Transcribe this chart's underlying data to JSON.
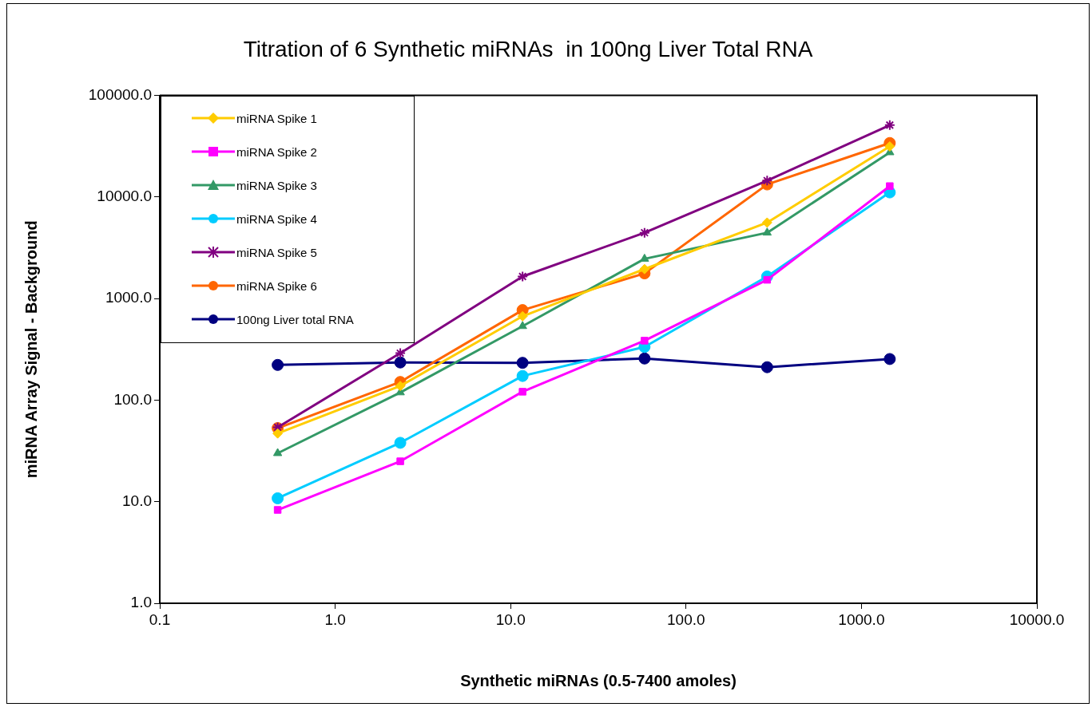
{
  "chart_data": {
    "type": "line",
    "title": "Titration of 6 Synthetic miRNAs  in 100ng Liver Total RNA",
    "xlabel": "Synthetic miRNAs (0.5-7400 amoles)",
    "ylabel": "miRNA Array Signal - Background",
    "x": [
      0.47,
      2.35,
      11.7,
      58,
      290,
      1450
    ],
    "series": [
      {
        "name": "miRNA Spike 1",
        "color": "#ffcc00",
        "marker": "diamond",
        "values": [
          47,
          138,
          670,
          1950,
          5600,
          31500
        ]
      },
      {
        "name": "miRNA Spike 2",
        "color": "#ff00ff",
        "marker": "square",
        "values": [
          8.3,
          25,
          121,
          385,
          1530,
          12800
        ]
      },
      {
        "name": "miRNA Spike 3",
        "color": "#339966",
        "marker": "triangle",
        "values": [
          30,
          119,
          535,
          2460,
          4450,
          27500
        ]
      },
      {
        "name": "miRNA Spike 4",
        "color": "#00ccff",
        "marker": "circle",
        "values": [
          10.8,
          38,
          173,
          334,
          1650,
          11100
        ]
      },
      {
        "name": "miRNA Spike 5",
        "color": "#800080",
        "marker": "cross",
        "values": [
          54,
          290,
          1650,
          4450,
          14500,
          51000
        ]
      },
      {
        "name": "miRNA Spike 6",
        "color": "#ff6600",
        "marker": "circle",
        "values": [
          53,
          151,
          770,
          1770,
          13300,
          34000
        ]
      },
      {
        "name": "100ng Liver total RNA",
        "color": "#000080",
        "marker": "circle",
        "values": [
          222,
          235,
          233,
          257,
          211,
          254
        ]
      }
    ],
    "log": "xy",
    "xlim": [
      0.1,
      10000
    ],
    "ylim": [
      1,
      100000
    ],
    "xticks": [
      0.1,
      {
        "value": 1,
        "label": "1.0"
      },
      {
        "value": 10,
        "label": "10.0"
      },
      {
        "value": 100,
        "label": "100.0"
      },
      {
        "value": 1000,
        "label": "1000.0"
      },
      {
        "value": 10000,
        "label": "10000.0"
      }
    ],
    "yticks": [
      {
        "value": 1,
        "label": "1.0"
      },
      {
        "value": 10,
        "label": "10.0"
      },
      {
        "value": 100,
        "label": "100.0"
      },
      {
        "value": 1000,
        "label": "1000.0"
      },
      {
        "value": 10000,
        "label": "10000.0"
      },
      {
        "value": 100000,
        "label": "100000.0"
      }
    ],
    "grid": false,
    "legend": "top left",
    "line_style": "solid"
  }
}
